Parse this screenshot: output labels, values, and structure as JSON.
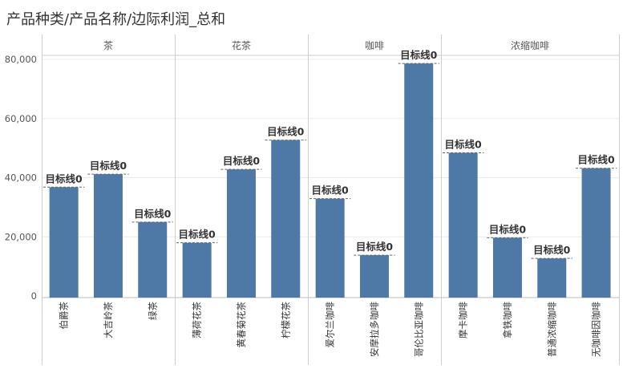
{
  "chart_data": {
    "type": "bar",
    "title": "产品种类/产品名称/边际利润_总和",
    "ylim": [
      0,
      84000
    ],
    "yticks": [
      0,
      20000,
      40000,
      60000,
      80000
    ],
    "ytick_labels": [
      "0",
      "20,000",
      "40,000",
      "60,000",
      "80,000"
    ],
    "grid": true,
    "bar_color": "#4e79a7",
    "reference_line_label": "目标线0",
    "groups": [
      {
        "name": "茶",
        "categories": [
          "伯爵茶",
          "大吉岭茶",
          "绿茶"
        ],
        "values": [
          36800,
          41200,
          25000
        ]
      },
      {
        "name": "花茶",
        "categories": [
          "薄荷花茶",
          "黄春菊花茶",
          "柠檬花茶"
        ],
        "values": [
          18000,
          42800,
          52700
        ]
      },
      {
        "name": "咖啡",
        "categories": [
          "爱尔兰咖啡",
          "安摩拉多咖啡",
          "哥伦比亚咖啡"
        ],
        "values": [
          32900,
          13800,
          78600
        ]
      },
      {
        "name": "浓缩咖啡",
        "categories": [
          "摩卡咖啡",
          "拿铁咖啡",
          "普通浓缩咖啡",
          "无咖啡因咖啡"
        ],
        "values": [
          48400,
          19700,
          12700,
          43200
        ]
      }
    ]
  }
}
